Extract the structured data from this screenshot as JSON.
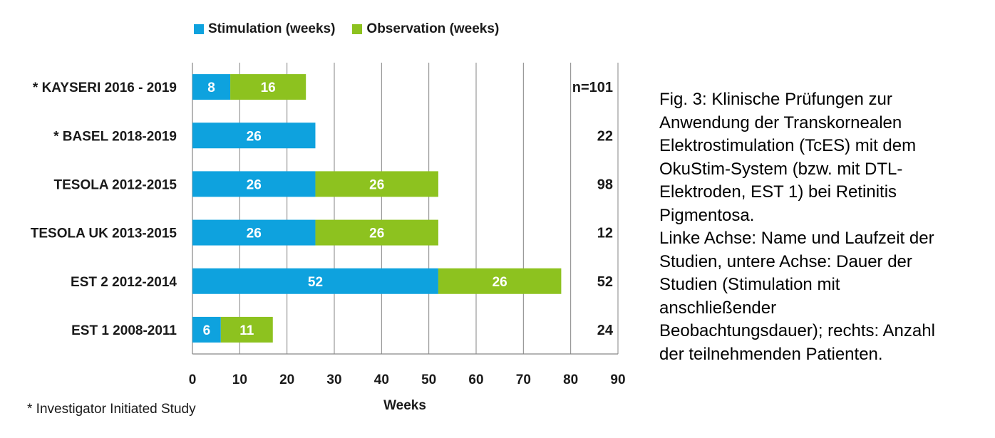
{
  "chart_data": {
    "type": "bar",
    "orientation": "horizontal",
    "stacked": true,
    "categories": [
      "* KAYSERI 2016 - 2019",
      "* BASEL 2018-2019",
      "TESOLA 2012-2015",
      "TESOLA UK 2013-2015",
      "EST 2 2012-2014",
      "EST 1 2008-2011"
    ],
    "series": [
      {
        "name": "Stimulation (weeks)",
        "color": "#0ea2de",
        "values": [
          8,
          26,
          26,
          26,
          52,
          6
        ]
      },
      {
        "name": "Observation (weeks)",
        "color": "#8dc21f",
        "values": [
          16,
          0,
          26,
          26,
          26,
          11
        ]
      }
    ],
    "patients": [
      "n=101",
      "22",
      "98",
      "12",
      "52",
      "24"
    ],
    "xlabel": "Weeks",
    "xlim": [
      0,
      90
    ],
    "xticks": [
      0,
      10,
      20,
      30,
      40,
      50,
      60,
      70,
      80,
      90
    ],
    "grid": true,
    "legend_position": "top"
  },
  "legend": {
    "stimulation": "Stimulation (weeks)",
    "observation": "Observation (weeks)",
    "stimulation_color": "#0ea2de",
    "observation_color": "#8dc21f"
  },
  "footnote": "* Investigator Initiated Study",
  "caption": "Fig. 3: Klinische Prüfungen zur\nAnwendung der Transkornealen\nElektrostimulation (TcES) mit dem\nOkuStim-System (bzw. mit DTL-\nElektroden, EST 1) bei Retinitis\nPigmentosa.\nLinke Achse: Name und Laufzeit der\nStudien, untere Achse: Dauer der\nStudien (Stimulation mit\nanschließender\nBeobachtungsdauer); rechts: Anzahl\nder teilnehmenden Patienten."
}
